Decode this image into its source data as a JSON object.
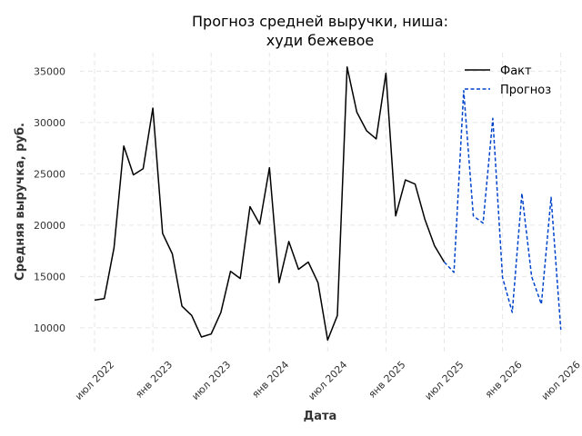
{
  "chart_data": {
    "type": "line",
    "title": [
      "Прогноз средней выручки, ниша:",
      "худи бежевое"
    ],
    "xlabel": "Дата",
    "ylabel": "Средняя выручка, руб.",
    "ylim": [
      7600,
      36800
    ],
    "xlim": [
      -1.5,
      48.5
    ],
    "grid": true,
    "legend_position": "top-right",
    "x_ticks": [
      {
        "pos": 0,
        "label": "июл 2022"
      },
      {
        "pos": 6,
        "label": "янв 2023"
      },
      {
        "pos": 12,
        "label": "июл 2023"
      },
      {
        "pos": 18,
        "label": "янв 2024"
      },
      {
        "pos": 24,
        "label": "июл 2024"
      },
      {
        "pos": 30,
        "label": "янв 2025"
      },
      {
        "pos": 36,
        "label": "июл 2025"
      },
      {
        "pos": 42,
        "label": "янв 2026"
      },
      {
        "pos": 48,
        "label": "июл 2026"
      }
    ],
    "y_ticks": [
      {
        "value": 10000,
        "label": "10000"
      },
      {
        "value": 15000,
        "label": "15000"
      },
      {
        "value": 20000,
        "label": "20000"
      },
      {
        "value": 25000,
        "label": "25000"
      },
      {
        "value": 30000,
        "label": "30000"
      },
      {
        "value": 35000,
        "label": "35000"
      }
    ],
    "series": [
      {
        "name": "Факт",
        "color": "#000000",
        "style": "solid",
        "x": [
          0,
          1,
          2,
          3,
          4,
          5,
          6,
          7,
          8,
          9,
          10,
          11,
          12,
          13,
          14,
          15,
          16,
          17,
          18,
          19,
          20,
          21,
          22,
          23,
          24,
          25,
          26,
          27,
          28,
          29,
          30,
          31,
          32,
          33,
          34,
          35,
          36
        ],
        "values": [
          12700,
          12850,
          17800,
          27700,
          24900,
          25500,
          31400,
          19200,
          17200,
          12100,
          11200,
          9100,
          9400,
          11500,
          15500,
          14800,
          21800,
          20100,
          25600,
          14400,
          18400,
          15700,
          16400,
          14400,
          8800,
          11200,
          35400,
          31000,
          29200,
          28400,
          34800,
          20900,
          24400,
          24000,
          20600,
          18000,
          16400
        ]
      },
      {
        "name": "Прогноз",
        "color": "#0044cc",
        "style": "dashed",
        "x": [
          36,
          37,
          38,
          39,
          40,
          41,
          42,
          43,
          44,
          45,
          46,
          47,
          48
        ],
        "values": [
          16400,
          15400,
          33100,
          20900,
          20200,
          30400,
          14900,
          11500,
          23100,
          15000,
          12300,
          22700,
          9800
        ]
      }
    ]
  }
}
